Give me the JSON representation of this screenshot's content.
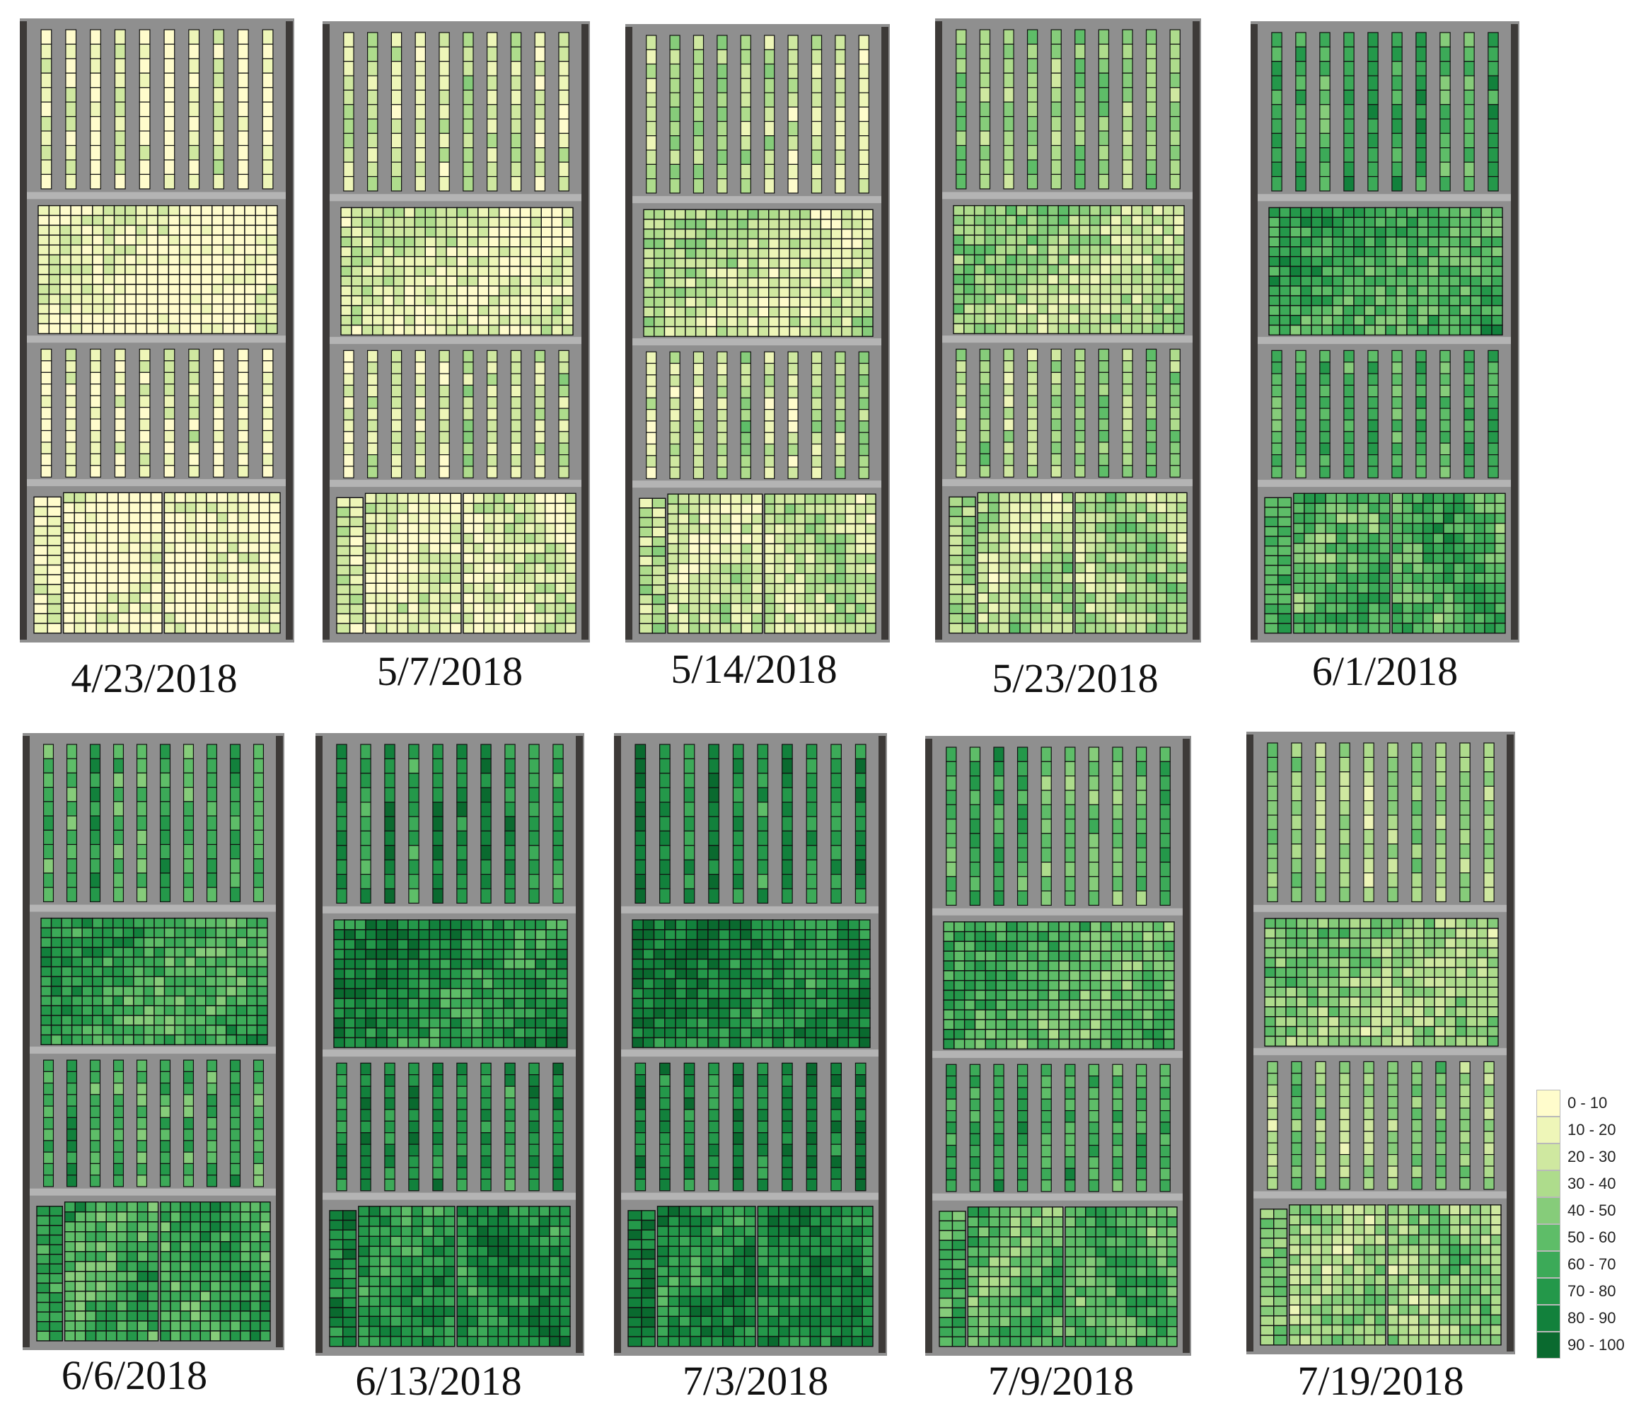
{
  "panels": [
    {
      "date": "4/23/2018",
      "level": 0.3
    },
    {
      "date": "5/7/2018",
      "level": 1.3
    },
    {
      "date": "5/14/2018",
      "level": 2.1
    },
    {
      "date": "5/23/2018",
      "level": 2.9
    },
    {
      "date": "6/1/2018",
      "level": 5.6
    },
    {
      "date": "6/6/2018",
      "level": 6.0
    },
    {
      "date": "6/13/2018",
      "level": 7.2
    },
    {
      "date": "7/3/2018",
      "level": 7.6
    },
    {
      "date": "7/9/2018",
      "level": 5.3
    },
    {
      "date": "7/19/2018",
      "level": 3.6
    }
  ],
  "legend": [
    {
      "label": "0  - 10",
      "color": "#fffccc"
    },
    {
      "label": "10 - 20",
      "color": "#eef6b8"
    },
    {
      "label": "20 - 30",
      "color": "#cfe8a0"
    },
    {
      "label": "30 - 40",
      "color": "#aedc8c"
    },
    {
      "label": "40 - 50",
      "color": "#86cc7a"
    },
    {
      "label": "50 - 60",
      "color": "#5ebd68"
    },
    {
      "label": "60 - 70",
      "color": "#3caa58"
    },
    {
      "label": "70 - 80",
      "color": "#24984a"
    },
    {
      "label": "80 - 90",
      "color": "#12813c"
    },
    {
      "label": "90 - 100",
      "color": "#0a6a2f"
    }
  ]
}
